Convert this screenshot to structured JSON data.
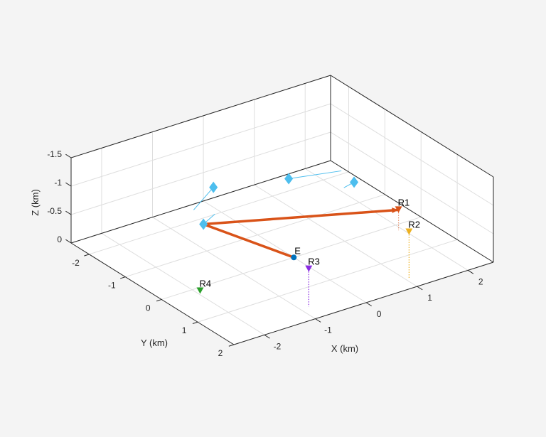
{
  "chart_data": {
    "type": "scatter",
    "projection": "3d",
    "xlabel": "X (km)",
    "ylabel": "Y (km)",
    "zlabel": "Z (km)",
    "xlim": [
      -2.6,
      2.5
    ],
    "ylim": [
      -2.5,
      2.0
    ],
    "zlim": [
      -1.5,
      0
    ],
    "z_direction": "reversed",
    "grid": true,
    "box": true,
    "xticks": [
      "-2",
      "-1",
      "0",
      "1",
      "2"
    ],
    "xtick_values": [
      -2,
      -1,
      0,
      1,
      2
    ],
    "yticks": [
      "-2",
      "-1",
      "0",
      "1",
      "2"
    ],
    "ytick_values": [
      -2,
      -1,
      0,
      1,
      2
    ],
    "zticks": [
      "-1.5",
      "-1",
      "-0.5",
      "0"
    ],
    "ztick_values": [
      -1.5,
      -1,
      -0.5,
      0
    ],
    "emitter": {
      "label": "E",
      "position": [
        0,
        0,
        0
      ],
      "color": "#0072BD"
    },
    "receivers": [
      {
        "label": "R1",
        "position": [
          1.93,
          0.18,
          -0.36
        ],
        "color": "#D95319"
      },
      {
        "label": "R2",
        "position": [
          1.07,
          1.68,
          -0.81
        ],
        "color": "#EDB120"
      },
      {
        "label": "R3",
        "position": [
          -0.83,
          1.58,
          -0.66
        ],
        "color": "#8A2BE2"
      },
      {
        "label": "R4",
        "position": [
          -1.92,
          0.11,
          0
        ],
        "color": "#2CA02C"
      }
    ],
    "targets": [
      {
        "position": [
          -0.77,
          -1.14,
          -1
        ],
        "track_end": [
          -1.5,
          -0.66,
          -1
        ]
      },
      {
        "position": [
          -1.67,
          -0.15,
          -1
        ],
        "track_end": [
          -1.31,
          -0.34,
          -1
        ]
      },
      {
        "position": [
          0.39,
          -0.69,
          -1
        ],
        "track_end": [
          1.24,
          -0.43,
          -1
        ]
      },
      {
        "position": [
          1.17,
          0.02,
          -1
        ],
        "track_end": [
          0.92,
          0.09,
          -1
        ]
      }
    ],
    "target_color": "#4DBEEE",
    "bistatic_path": {
      "color": "#D95319",
      "points": [
        [
          0,
          0,
          0
        ],
        [
          -1.67,
          -0.15,
          -1
        ],
        [
          1.93,
          0.18,
          -0.36
        ]
      ]
    }
  }
}
